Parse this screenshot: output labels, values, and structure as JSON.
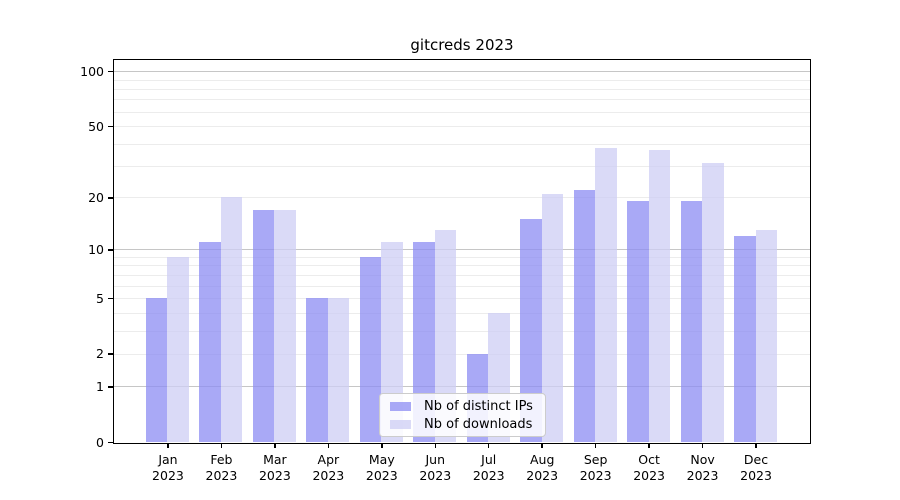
{
  "title": "gitcreds 2023",
  "legend": {
    "items": [
      {
        "label": "Nb of distinct IPs",
        "color": "#8c8cf3"
      },
      {
        "label": "Nb of downloads",
        "color": "#cecef4"
      }
    ]
  },
  "y_axis": {
    "tick_values": [
      100,
      50,
      20,
      10,
      5,
      2,
      1,
      0
    ],
    "tick_labels": [
      "100",
      "50",
      "20",
      "10",
      "5",
      "2",
      "1",
      "0"
    ]
  },
  "chart_data": {
    "type": "bar",
    "title": "gitcreds 2023",
    "categories": [
      "Jan 2023",
      "Feb 2023",
      "Mar 2023",
      "Apr 2023",
      "May 2023",
      "Jun 2023",
      "Jul 2023",
      "Aug 2023",
      "Sep 2023",
      "Oct 2023",
      "Nov 2023",
      "Dec 2023"
    ],
    "series": [
      {
        "name": "Nb of distinct IPs",
        "color": "#8c8cf3",
        "values": [
          5,
          11,
          17,
          5,
          9,
          11,
          2,
          15,
          22,
          19,
          19,
          12
        ]
      },
      {
        "name": "Nb of downloads",
        "color": "#cecef4",
        "values": [
          9,
          20,
          17,
          5,
          11,
          13,
          4,
          21,
          38,
          37,
          31,
          13
        ]
      }
    ],
    "xlabel": "",
    "ylabel": "",
    "yscale": "log1p",
    "ylim": [
      0,
      115
    ],
    "y_ticks": [
      0,
      1,
      2,
      5,
      10,
      20,
      50,
      100
    ],
    "grid_minor": [
      2,
      3,
      4,
      5,
      6,
      7,
      8,
      9,
      20,
      30,
      40,
      50,
      60,
      70,
      80,
      90
    ],
    "grid_major": [
      1,
      10,
      100
    ],
    "grid": "horizontal",
    "legend_position": "lower center"
  }
}
